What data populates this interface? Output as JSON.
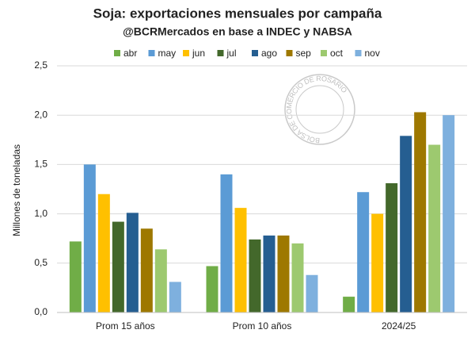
{
  "chart_data": {
    "type": "bar",
    "title": "Soja: exportaciones mensuales por campaña",
    "subtitle": "@BCRMercados en base a INDEC y NABSA",
    "y_label": "Millones de toneladas",
    "watermark": "BOLSA DE COMERCIO DE ROSARIO",
    "categories": [
      "Prom 15 años",
      "Prom 10 años",
      "2024/25"
    ],
    "series": [
      {
        "name": "abr",
        "color": "#70ad47",
        "values": [
          0.72,
          0.47,
          0.16
        ]
      },
      {
        "name": "may",
        "color": "#5b9bd5",
        "values": [
          1.5,
          1.4,
          1.22
        ]
      },
      {
        "name": "jun",
        "color": "#ffc000",
        "values": [
          1.2,
          1.06,
          1.0
        ]
      },
      {
        "name": "jul",
        "color": "#43682b",
        "values": [
          0.92,
          0.74,
          1.31
        ]
      },
      {
        "name": "ago",
        "color": "#255e91",
        "values": [
          1.01,
          0.78,
          1.79
        ]
      },
      {
        "name": "sep",
        "color": "#9e7800",
        "values": [
          0.85,
          0.78,
          2.03
        ]
      },
      {
        "name": "oct",
        "color": "#9dc96f",
        "values": [
          0.64,
          0.7,
          1.7
        ]
      },
      {
        "name": "nov",
        "color": "#7eb0de",
        "values": [
          0.31,
          0.38,
          2.0
        ]
      }
    ],
    "ylim": [
      0,
      2.5
    ],
    "yticks": [
      {
        "value": 0,
        "label": "0,0"
      },
      {
        "value": 0.5,
        "label": "0,5"
      },
      {
        "value": 1,
        "label": "1,0"
      },
      {
        "value": 1.5,
        "label": "1,5"
      },
      {
        "value": 2,
        "label": "2,0"
      },
      {
        "value": 2.5,
        "label": "2,5"
      }
    ],
    "grid": true
  }
}
